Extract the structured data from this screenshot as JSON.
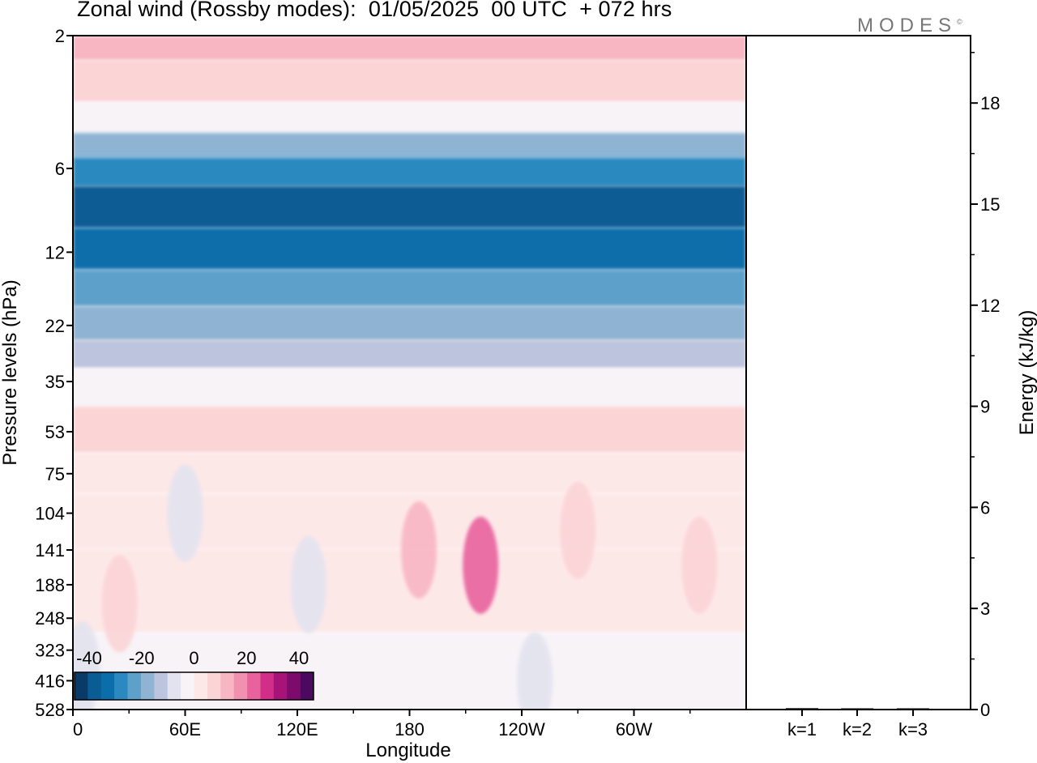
{
  "title": "Zonal wind (Rossby modes):  01/05/2025  00 UTC  + 072 hrs",
  "brand": "MODES",
  "brand_mark": "©",
  "chart_data": [
    {
      "type": "heatmap",
      "title": "Zonal wind (Rossby modes):  01/05/2025  00 UTC  + 072 hrs",
      "xlabel": "Longitude",
      "ylabel": "Pressure levels (hPa)",
      "x_tick_labels": [
        "0",
        "60E",
        "120E",
        "180",
        "120W",
        "60W"
      ],
      "x_ticks_deg": [
        0,
        60,
        120,
        180,
        240,
        300
      ],
      "x_range_deg": [
        0,
        360
      ],
      "y_tick_labels": [
        "2",
        "6",
        "12",
        "22",
        "35",
        "53",
        "75",
        "104",
        "141",
        "188",
        "248",
        "323",
        "416",
        "528"
      ],
      "y_scale": "log",
      "colorbar_labels": [
        "-40",
        "-20",
        "0",
        "20",
        "40"
      ],
      "colorbar_colors": [
        "#0a3a66",
        "#0a5c94",
        "#0b6eaa",
        "#2c89bf",
        "#5da1cb",
        "#8fb3d3",
        "#bcc4de",
        "#e3e3ef",
        "#f7f3f7",
        "#fde8e8",
        "#fbd4d6",
        "#f8b6c3",
        "#f290b2",
        "#e8629e",
        "#d12e8a",
        "#a81379",
        "#7d0b6c",
        "#4b0a60"
      ],
      "legend_position": "bottom-left",
      "grid": false,
      "layers": [
        {
          "pressure_hPa": 2,
          "value": 12
        },
        {
          "pressure_hPa": 3,
          "value": 6
        },
        {
          "pressure_hPa": 4,
          "value": -5
        },
        {
          "pressure_hPa": 5,
          "value": -20
        },
        {
          "pressure_hPa": 6,
          "value": -30
        },
        {
          "pressure_hPa": 8,
          "value": -38
        },
        {
          "pressure_hPa": 12,
          "value": -32
        },
        {
          "pressure_hPa": 16,
          "value": -25
        },
        {
          "pressure_hPa": 22,
          "value": -18
        },
        {
          "pressure_hPa": 28,
          "value": -12
        },
        {
          "pressure_hPa": 35,
          "value": -3
        },
        {
          "pressure_hPa": 53,
          "value": 6
        },
        {
          "pressure_hPa": 75,
          "value": 4
        },
        {
          "pressure_hPa": 104,
          "value": 1
        },
        {
          "pressure_hPa": 188,
          "value": 0
        },
        {
          "pressure_hPa": 416,
          "value": -1
        }
      ],
      "features": [
        {
          "lon": 60,
          "pressure_hPa": 104,
          "value": -8
        },
        {
          "lon": 126,
          "pressure_hPa": 188,
          "value": -8
        },
        {
          "lon": 185,
          "pressure_hPa": 141,
          "value": 12
        },
        {
          "lon": 218,
          "pressure_hPa": 160,
          "value": 20
        },
        {
          "lon": 270,
          "pressure_hPa": 120,
          "value": 8
        },
        {
          "lon": 335,
          "pressure_hPa": 160,
          "value": 8
        },
        {
          "lon": 5,
          "pressure_hPa": 380,
          "value": -6
        },
        {
          "lon": 25,
          "pressure_hPa": 220,
          "value": 5
        },
        {
          "lon": 247,
          "pressure_hPa": 416,
          "value": -6
        }
      ]
    },
    {
      "type": "bar",
      "ylabel": "Energy (kJ/kg)",
      "categories": [
        "k=1",
        "k=2",
        "k=3"
      ],
      "values": [
        0.04,
        0.03,
        0.03
      ],
      "ylim": [
        0,
        20
      ],
      "y_tick_labels": [
        "0",
        "3",
        "6",
        "9",
        "12",
        "15",
        "18"
      ],
      "y_ticks": [
        0,
        3,
        6,
        9,
        12,
        15,
        18
      ]
    }
  ]
}
